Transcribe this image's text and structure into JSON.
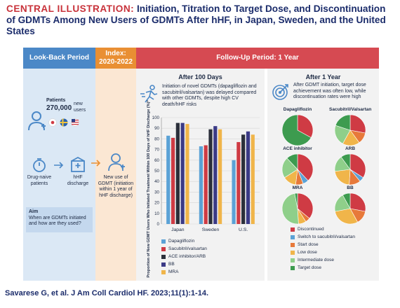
{
  "title": {
    "lead": "CENTRAL ILLUSTRATION:",
    "rest": " Initiation, Titration to Target Dose, and Discontinuation of GDMTs Among New Users of GDMTs After hHF, in Japan, Sweden, and the United States"
  },
  "headers": {
    "lookback": "Look-Back Period",
    "index_line1": "Index:",
    "index_line2": "2020-2022",
    "followup": "Follow-Up Period: 1 Year"
  },
  "lookback": {
    "patients_label": "Patients",
    "patients_count": "270,000",
    "new_users": "new users",
    "drug_naive": "Drug-naive patients",
    "hhf_discharge": "hHF discharge",
    "aim_title": "Aim",
    "aim_text": "When are GDMTs initiated and how are they used?"
  },
  "index": {
    "text": "New use of GDMT (initiation within 1 year of hHF discharge)"
  },
  "after100": {
    "heading": "After 100 Days",
    "text": "Initiation of novel GDMTs (dapagliflozin and sacubitril/valsartan) was delayed compared with other GDMTs, despite high CV death/hHF risks"
  },
  "after1year": {
    "heading": "After 1 Year",
    "text": "After GDMT initiation, target dose achievement was often low, while discontinuation rates were high"
  },
  "chart_data": [
    {
      "type": "bar",
      "categories": [
        "Japan",
        "Sweden",
        "U.S."
      ],
      "ylabel": "Proportion of New GDMT Users Who Initiated Treatment Within 100 Days of hHF Discharge (%)*",
      "ylim": [
        0,
        100
      ],
      "yticks": [
        0,
        10,
        20,
        30,
        40,
        50,
        60,
        70,
        80,
        90,
        100
      ],
      "series": [
        {
          "name": "Dapagliflozin",
          "color": "#5ba2d6",
          "values": [
            83,
            73,
            60
          ]
        },
        {
          "name": "Sacubitril/valsartan",
          "color": "#cf3b44",
          "values": [
            81,
            74,
            77
          ]
        },
        {
          "name": "ACE inhibitor/ARB",
          "color": "#2b2f3a",
          "values": [
            95,
            89,
            84
          ]
        },
        {
          "name": "BB",
          "color": "#3b3a86",
          "values": [
            95,
            92,
            87
          ]
        },
        {
          "name": "MRA",
          "color": "#f0b54a",
          "values": [
            94,
            89,
            84
          ]
        }
      ]
    },
    {
      "type": "pie",
      "title": "Dapagliflozin",
      "categories": [
        "Discontinued",
        "Switch to sacubitril/valsartan",
        "Start dose",
        "Low dose",
        "Intermediate dose",
        "Target dose"
      ],
      "values": [
        33,
        0,
        0,
        0,
        0,
        67
      ]
    },
    {
      "type": "pie",
      "title": "Sacubitril/Valsartan",
      "categories": [
        "Discontinued",
        "Switch to sacubitril/valsartan",
        "Start dose",
        "Low dose",
        "Intermediate dose",
        "Target dose"
      ],
      "values": [
        28,
        0,
        12,
        18,
        22,
        20
      ]
    },
    {
      "type": "pie",
      "title": "ACE inhibitor",
      "categories": [
        "Discontinued",
        "Switch to sacubitril/valsartan",
        "Start dose",
        "Low dose",
        "Intermediate dose",
        "Target dose"
      ],
      "values": [
        38,
        6,
        8,
        14,
        22,
        12
      ]
    },
    {
      "type": "pie",
      "title": "ARB",
      "categories": [
        "Discontinued",
        "Switch to sacubitril/valsartan",
        "Start dose",
        "Low dose",
        "Intermediate dose",
        "Target dose"
      ],
      "values": [
        34,
        5,
        12,
        22,
        17,
        10
      ]
    },
    {
      "type": "pie",
      "title": "MRA",
      "categories": [
        "Discontinued",
        "Switch to sacubitril/valsartan",
        "Start dose",
        "Low dose",
        "Intermediate dose",
        "Target dose"
      ],
      "values": [
        36,
        0,
        5,
        8,
        48,
        3
      ]
    },
    {
      "type": "pie",
      "title": "BB",
      "categories": [
        "Discontinued",
        "Switch to sacubitril/valsartan",
        "Start dose",
        "Low dose",
        "Intermediate dose",
        "Target dose"
      ],
      "values": [
        28,
        0,
        14,
        30,
        20,
        8
      ]
    }
  ],
  "pie_legend": [
    {
      "label": "Discontinued",
      "color": "#cf3b44"
    },
    {
      "label": "Switch to sacubitril/valsartan",
      "color": "#5ba2d6"
    },
    {
      "label": "Start dose",
      "color": "#e7793a"
    },
    {
      "label": "Low dose",
      "color": "#f0b54a"
    },
    {
      "label": "Intermediate dose",
      "color": "#8fcf8a"
    },
    {
      "label": "Target dose",
      "color": "#3d9b4f"
    }
  ],
  "citation": "Savarese G, et al. J Am Coll Cardiol HF. 2023;11(1):1-14."
}
